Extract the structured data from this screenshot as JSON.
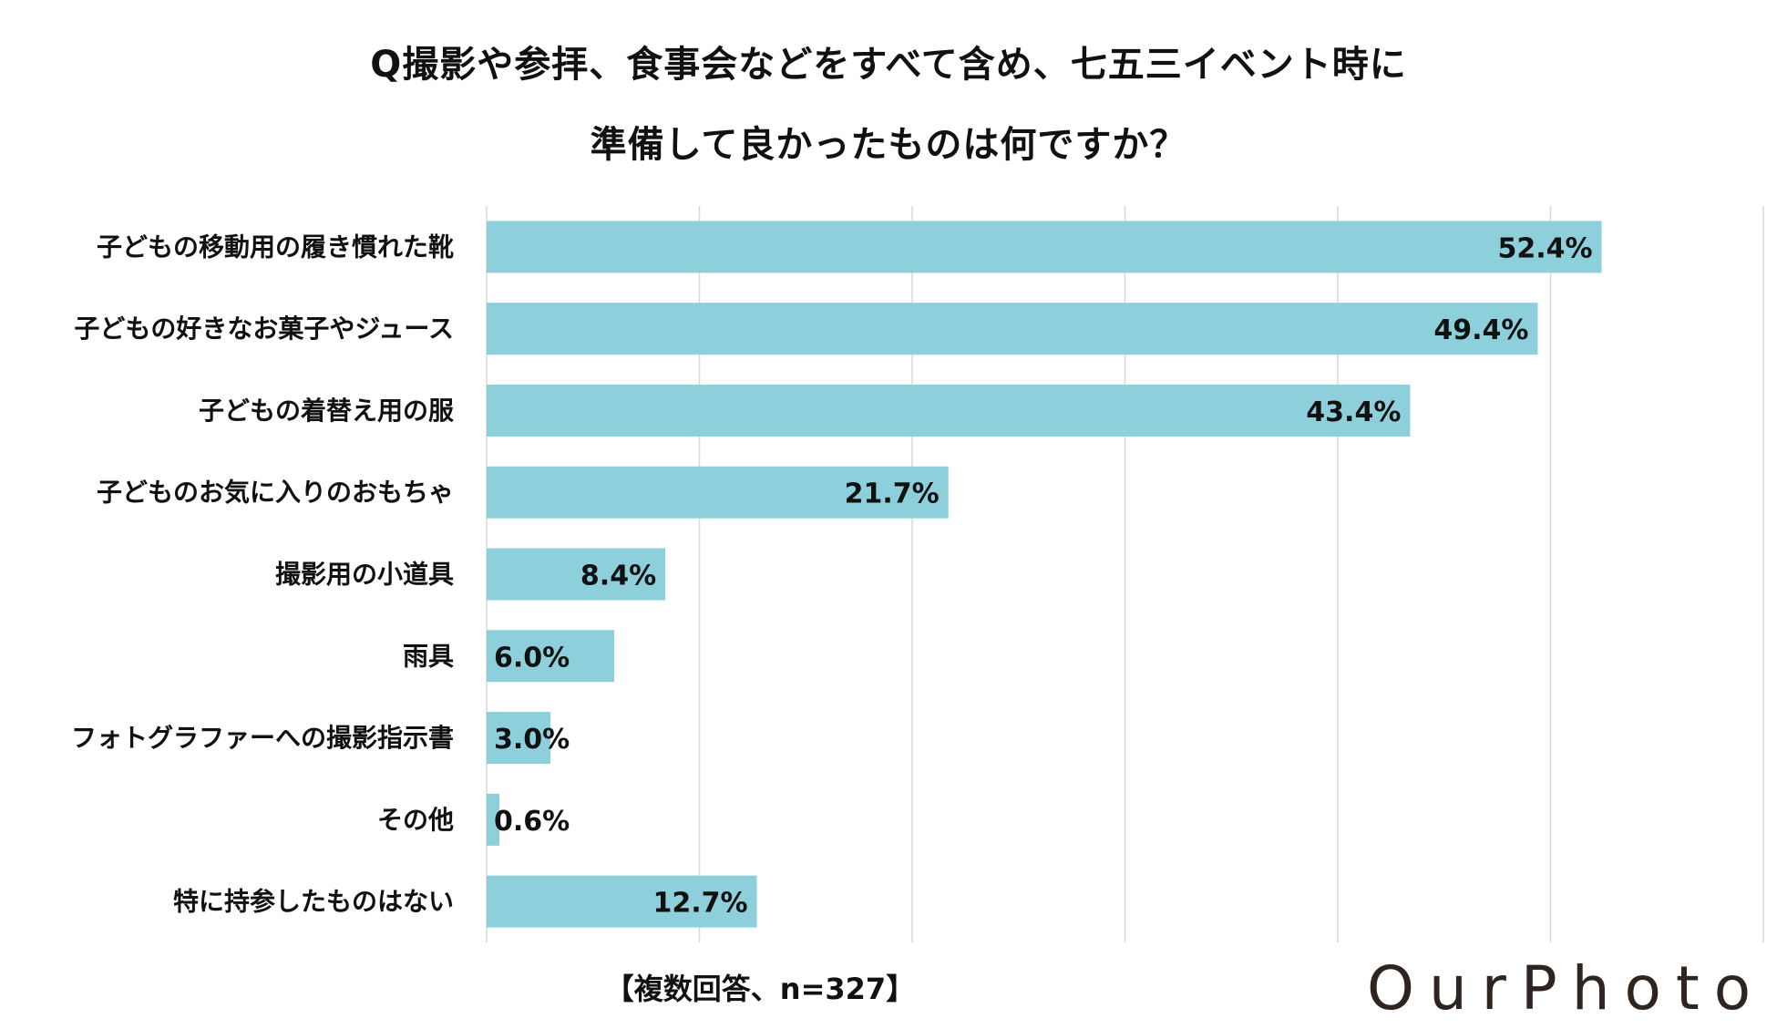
{
  "title": {
    "line1": "Q撮影や参拝、食事会などをすべて含め、七五三イベント時に",
    "line2": "準備して良かったものは何ですか？"
  },
  "note": "【複数回答、n=327】",
  "logo": "OurPhoto",
  "colors": {
    "bar": "#8dd0dc",
    "grid": "#d9d9d9",
    "text": "#111111",
    "logo": "#2f2520"
  },
  "chart_data": {
    "type": "bar",
    "orientation": "horizontal",
    "categories": [
      "子どもの移動用の履き慣れた靴",
      "子どもの好きなお菓子やジュース",
      "子どもの着替え用の服",
      "子どものお気に入りのおもちゃ",
      "撮影用の小道具",
      "雨具",
      "フォトグラファーへの撮影指示書",
      "その他",
      "特に持参したものはない"
    ],
    "values": [
      52.4,
      49.4,
      43.4,
      21.7,
      8.4,
      6.0,
      3.0,
      0.6,
      12.7
    ],
    "value_labels": [
      "52.4%",
      "49.4%",
      "43.4%",
      "21.7%",
      "8.4%",
      "6.0%",
      "3.0%",
      "0.6%",
      "12.7%"
    ],
    "xlim": [
      0,
      60
    ],
    "grid": true
  }
}
